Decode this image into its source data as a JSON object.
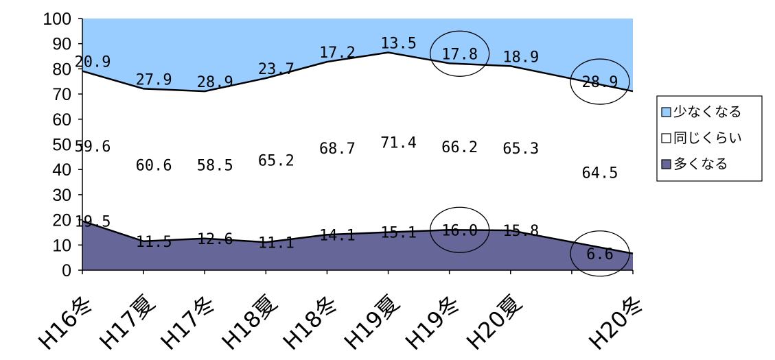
{
  "chart_data": {
    "type": "area",
    "stacked": true,
    "categories": [
      "H16冬",
      "H17夏",
      "H17冬",
      "H18夏",
      "H18冬",
      "H19夏",
      "H19冬",
      "H20夏",
      "H20冬"
    ],
    "series": [
      {
        "name": "多くなる",
        "color": "#666699",
        "values": [
          19.5,
          11.5,
          12.6,
          11.1,
          14.1,
          15.1,
          16.0,
          15.8,
          6.6
        ],
        "labels": [
          "19.5",
          "11.5",
          "12.6",
          "11.1",
          "14.1",
          "15.1",
          "16.0",
          "15.8",
          "6.6"
        ]
      },
      {
        "name": "同じくらい",
        "color": "#ffffff",
        "values": [
          59.6,
          60.6,
          58.5,
          65.2,
          68.7,
          71.4,
          66.2,
          65.3,
          64.5
        ],
        "labels": [
          "59.6",
          "60.6",
          "58.5",
          "65.2",
          "68.7",
          "71.4",
          "66.2",
          "65.3",
          "64.5"
        ]
      },
      {
        "name": "少なくなる",
        "color": "#99ccff",
        "values": [
          20.9,
          27.9,
          28.9,
          23.7,
          17.2,
          13.5,
          17.8,
          18.9,
          28.9
        ],
        "labels": [
          "20.9",
          "27.9",
          "28.9",
          "23.7",
          "17.2",
          "13.5",
          "17.8",
          "18.9",
          "28.9"
        ]
      }
    ],
    "yticks": [
      "0",
      "10",
      "20",
      "30",
      "40",
      "50",
      "60",
      "70",
      "80",
      "90",
      "100"
    ],
    "ylim": [
      0,
      100
    ],
    "circled": [
      {
        "series": "多くなる",
        "category": "H19冬"
      },
      {
        "series": "多くなる",
        "category": "H20冬"
      },
      {
        "series": "少なくなる",
        "category": "H19冬"
      },
      {
        "series": "少なくなる",
        "category": "H20冬"
      }
    ],
    "legend_position": "right",
    "legend_order": [
      "少なくなる",
      "同じくらい",
      "多くなる"
    ],
    "grid": false
  }
}
